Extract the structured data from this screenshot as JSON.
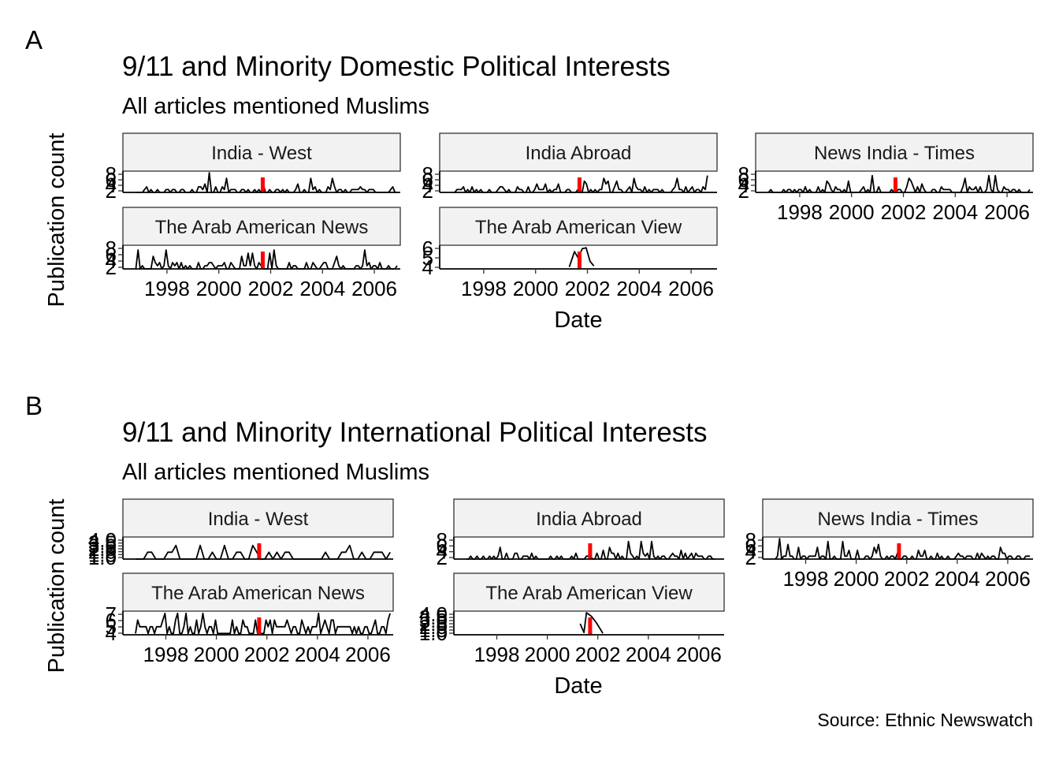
{
  "figure": {
    "caption": "Source: Ethnic Newswatch",
    "colors": {
      "series": "#000000",
      "event_marker": "#ff0000",
      "strip_fill": "#f2f2f2",
      "strip_border": "#333333"
    }
  },
  "chart_data": [
    {
      "tag": "A",
      "type": "line",
      "title": "9/11 and Minority Domestic Political Interests",
      "subtitle": "All articles mentioned Muslims",
      "xlabel": "Date",
      "ylabel": "Publication count",
      "facet_layout": "3 columns, 2 rows, free scales",
      "event_marker": {
        "date": "2001-09-11"
      },
      "panels": [
        {
          "name": "India - West",
          "xlim": [
            1996.3,
            2007.0
          ],
          "ylim": [
            1,
            8
          ],
          "yticks": [
            "2",
            "4",
            "6",
            "8"
          ],
          "xticks": [],
          "series": {
            "start": 1996.8,
            "end": 2006.9,
            "step": 0.0833,
            "min": 1,
            "max": 8,
            "peaks": [
              [
                1999.6,
                8
              ]
            ],
            "seed": 11
          }
        },
        {
          "name": "India Abroad",
          "xlim": [
            1996.3,
            2007.0
          ],
          "ylim": [
            1,
            8
          ],
          "yticks": [
            "2",
            "4",
            "6",
            "8"
          ],
          "xticks": [],
          "series": {
            "start": 1996.8,
            "end": 2006.7,
            "step": 0.0833,
            "min": 1,
            "max": 8,
            "peaks": [],
            "seed": 23
          }
        },
        {
          "name": "News India - Times",
          "xlim": [
            1996.3,
            2007.0
          ],
          "ylim": [
            1,
            8
          ],
          "yticks": [
            "2",
            "4",
            "6",
            "8"
          ],
          "xticks": [
            "1998",
            "2000",
            "2002",
            "2004",
            "2006"
          ],
          "series": {
            "start": 1996.8,
            "end": 2006.9,
            "step": 0.0833,
            "min": 1,
            "max": 8,
            "peaks": [],
            "seed": 37
          }
        },
        {
          "name": "The Arab American News",
          "xlim": [
            1996.3,
            2007.0
          ],
          "ylim": [
            1,
            8
          ],
          "yticks": [
            "2",
            "4",
            "6",
            "8"
          ],
          "xticks": [
            "1998",
            "2000",
            "2002",
            "2004",
            "2006"
          ],
          "series": {
            "start": 1996.8,
            "end": 2006.9,
            "step": 0.0833,
            "min": 1,
            "max": 8,
            "peaks": [],
            "seed": 41
          }
        },
        {
          "name": "The Arab American View",
          "xlim": [
            1996.3,
            2007.0
          ],
          "ylim": [
            3.8,
            6.1
          ],
          "yticks": [
            "4",
            "5",
            "6"
          ],
          "xticks": [
            "1998",
            "2000",
            "2002",
            "2004",
            "2006"
          ],
          "series_points": [
            [
              2001.3,
              4
            ],
            [
              2001.5,
              5.6
            ],
            [
              2001.65,
              4.9
            ],
            [
              2001.8,
              5.9
            ],
            [
              2001.95,
              6.0
            ],
            [
              2002.1,
              4.6
            ],
            [
              2002.25,
              4.1
            ]
          ]
        }
      ]
    },
    {
      "tag": "B",
      "type": "line",
      "title": "9/11 and Minority International Political Interests",
      "subtitle": "All articles mentioned Muslims",
      "xlabel": "Date",
      "ylabel": "Publication count",
      "facet_layout": "3 columns, 2 rows, free scales",
      "event_marker": {
        "date": "2001-09-11"
      },
      "panels": [
        {
          "name": "India - West",
          "xlim": [
            1996.3,
            2007.0
          ],
          "ylim": [
            1,
            4
          ],
          "yticks": [
            "1.0",
            "1.5",
            "2.0",
            "2.5",
            "3.0",
            "3.5",
            "4.0"
          ],
          "xticks": [],
          "series": {
            "start": 1996.8,
            "end": 2006.9,
            "step": 0.16,
            "min": 1,
            "max": 4,
            "peaks": [],
            "seed": 53
          }
        },
        {
          "name": "India Abroad",
          "xlim": [
            1996.3,
            2007.0
          ],
          "ylim": [
            1,
            8
          ],
          "yticks": [
            "2",
            "4",
            "6",
            "8"
          ],
          "xticks": [],
          "series": {
            "start": 1996.8,
            "end": 2006.7,
            "step": 0.0833,
            "min": 1,
            "max": 8,
            "peaks": [],
            "seed": 67
          }
        },
        {
          "name": "News India - Times",
          "xlim": [
            1996.3,
            2007.0
          ],
          "ylim": [
            1,
            8
          ],
          "yticks": [
            "2",
            "4",
            "6",
            "8"
          ],
          "xticks": [
            "1998",
            "2000",
            "2002",
            "2004",
            "2006"
          ],
          "series": {
            "start": 1996.8,
            "end": 2006.9,
            "step": 0.0833,
            "min": 1,
            "max": 8,
            "peaks": [
              [
                1997.0,
                8
              ],
              [
                1999.5,
                7
              ]
            ],
            "seed": 71
          }
        },
        {
          "name": "The Arab American News",
          "xlim": [
            1996.3,
            2007.0
          ],
          "ylim": [
            3.8,
            7.1
          ],
          "yticks": [
            "4",
            "5",
            "6",
            "7"
          ],
          "xticks": [
            "1998",
            "2000",
            "2002",
            "2004",
            "2006"
          ],
          "series": {
            "start": 1996.8,
            "end": 2006.9,
            "step": 0.0833,
            "min": 4,
            "max": 7,
            "peaks": [
              [
                1998.5,
                7
              ]
            ],
            "seed": 83
          }
        },
        {
          "name": "The Arab American View",
          "xlim": [
            1996.3,
            2007.0
          ],
          "ylim": [
            1,
            4
          ],
          "yticks": [
            "1.0",
            "1.5",
            "2.0",
            "2.5",
            "3.0",
            "3.5",
            "4.0"
          ],
          "xticks": [
            "1998",
            "2000",
            "2002",
            "2004",
            "2006"
          ],
          "series_points": [
            [
              2001.3,
              2.5
            ],
            [
              2001.45,
              1.3
            ],
            [
              2001.55,
              4.0
            ],
            [
              2001.75,
              3.5
            ],
            [
              2001.95,
              2.6
            ],
            [
              2002.2,
              1.2
            ]
          ]
        }
      ]
    }
  ]
}
